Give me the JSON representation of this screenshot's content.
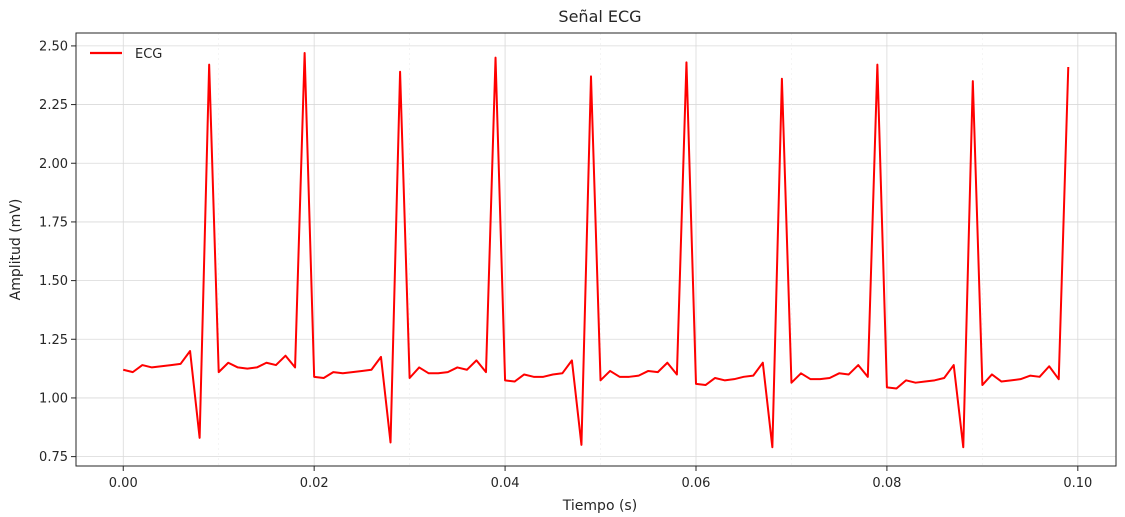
{
  "chart_data": {
    "type": "line",
    "title": "Señal ECG",
    "xlabel": "Tiempo (s)",
    "ylabel": "Amplitud (mV)",
    "xlim": [
      -0.00495,
      0.104
    ],
    "ylim": [
      0.71,
      2.555
    ],
    "xticks": [
      0.0,
      0.02,
      0.04,
      0.06,
      0.08,
      0.1
    ],
    "xtick_labels": [
      "0.00",
      "0.02",
      "0.04",
      "0.06",
      "0.08",
      "0.10"
    ],
    "yticks": [
      0.75,
      1.0,
      1.25,
      1.5,
      1.75,
      2.0,
      2.25,
      2.5
    ],
    "ytick_labels": [
      "0.75",
      "1.00",
      "1.25",
      "1.50",
      "1.75",
      "2.00",
      "2.25",
      "2.50"
    ],
    "grid": true,
    "legend_position": "top-left",
    "series": [
      {
        "name": "ECG",
        "color": "#ff0000",
        "x": [
          0.0,
          0.001,
          0.002,
          0.003,
          0.004,
          0.005,
          0.006,
          0.007,
          0.008,
          0.009,
          0.01,
          0.011,
          0.012,
          0.013,
          0.014,
          0.015,
          0.016,
          0.017,
          0.018,
          0.019,
          0.02,
          0.021,
          0.022,
          0.023,
          0.024,
          0.025,
          0.026,
          0.027,
          0.028,
          0.029,
          0.03,
          0.031,
          0.032,
          0.033,
          0.034,
          0.035,
          0.036,
          0.037,
          0.038,
          0.039,
          0.04,
          0.041,
          0.042,
          0.043,
          0.044,
          0.045,
          0.046,
          0.047,
          0.048,
          0.049,
          0.05,
          0.051,
          0.052,
          0.053,
          0.054,
          0.055,
          0.056,
          0.057,
          0.058,
          0.059,
          0.06,
          0.061,
          0.062,
          0.063,
          0.064,
          0.065,
          0.066,
          0.067,
          0.068,
          0.069,
          0.07,
          0.071,
          0.072,
          0.073,
          0.074,
          0.075,
          0.076,
          0.077,
          0.078,
          0.079,
          0.08,
          0.081,
          0.082,
          0.083,
          0.084,
          0.085,
          0.086,
          0.087,
          0.088,
          0.089,
          0.09,
          0.091,
          0.092,
          0.093,
          0.094,
          0.095,
          0.096,
          0.097,
          0.098,
          0.099
        ],
        "y": [
          1.12,
          1.11,
          1.14,
          1.13,
          1.135,
          1.14,
          1.145,
          1.2,
          0.83,
          2.42,
          1.11,
          1.15,
          1.13,
          1.125,
          1.13,
          1.15,
          1.14,
          1.18,
          1.13,
          2.47,
          1.09,
          1.085,
          1.11,
          1.105,
          1.11,
          1.115,
          1.12,
          1.175,
          0.81,
          2.39,
          1.085,
          1.13,
          1.105,
          1.105,
          1.11,
          1.13,
          1.12,
          1.16,
          1.11,
          2.45,
          1.075,
          1.07,
          1.1,
          1.09,
          1.09,
          1.1,
          1.105,
          1.16,
          0.8,
          2.37,
          1.075,
          1.115,
          1.09,
          1.09,
          1.095,
          1.115,
          1.11,
          1.15,
          1.1,
          2.43,
          1.06,
          1.055,
          1.085,
          1.075,
          1.08,
          1.09,
          1.095,
          1.15,
          0.79,
          2.36,
          1.065,
          1.105,
          1.08,
          1.08,
          1.085,
          1.105,
          1.1,
          1.14,
          1.09,
          2.42,
          1.045,
          1.04,
          1.075,
          1.065,
          1.07,
          1.075,
          1.085,
          1.14,
          0.79,
          2.35,
          1.055,
          1.1,
          1.07,
          1.075,
          1.08,
          1.095,
          1.09,
          1.135,
          1.08,
          2.41
        ]
      }
    ]
  }
}
